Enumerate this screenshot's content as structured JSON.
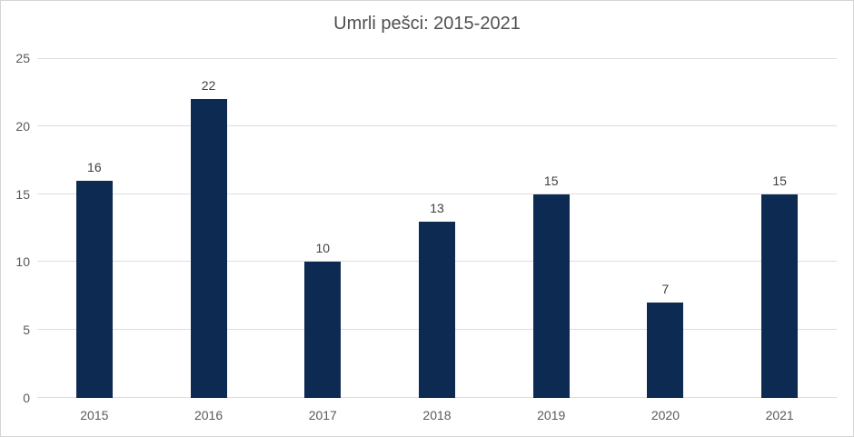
{
  "chart": {
    "colors": {
      "bar": "#0D2A52",
      "gridline": "#DDDDDD",
      "axis_label": "#595959",
      "data_label": "#404040",
      "title": "#4F4F4F",
      "border": "#D5D5D5",
      "background": "#FFFFFF"
    }
  },
  "chart_data": {
    "type": "bar",
    "title": "Umrli pešci: 2015-2021",
    "categories": [
      "2015",
      "2016",
      "2017",
      "2018",
      "2019",
      "2020",
      "2021"
    ],
    "values": [
      16,
      22,
      10,
      13,
      15,
      7,
      15
    ],
    "y_ticks": [
      0,
      5,
      10,
      15,
      20,
      25
    ],
    "ylim": [
      0,
      25
    ],
    "xlabel": "",
    "ylabel": "",
    "grid": true,
    "data_labels": true,
    "legend": "none"
  }
}
